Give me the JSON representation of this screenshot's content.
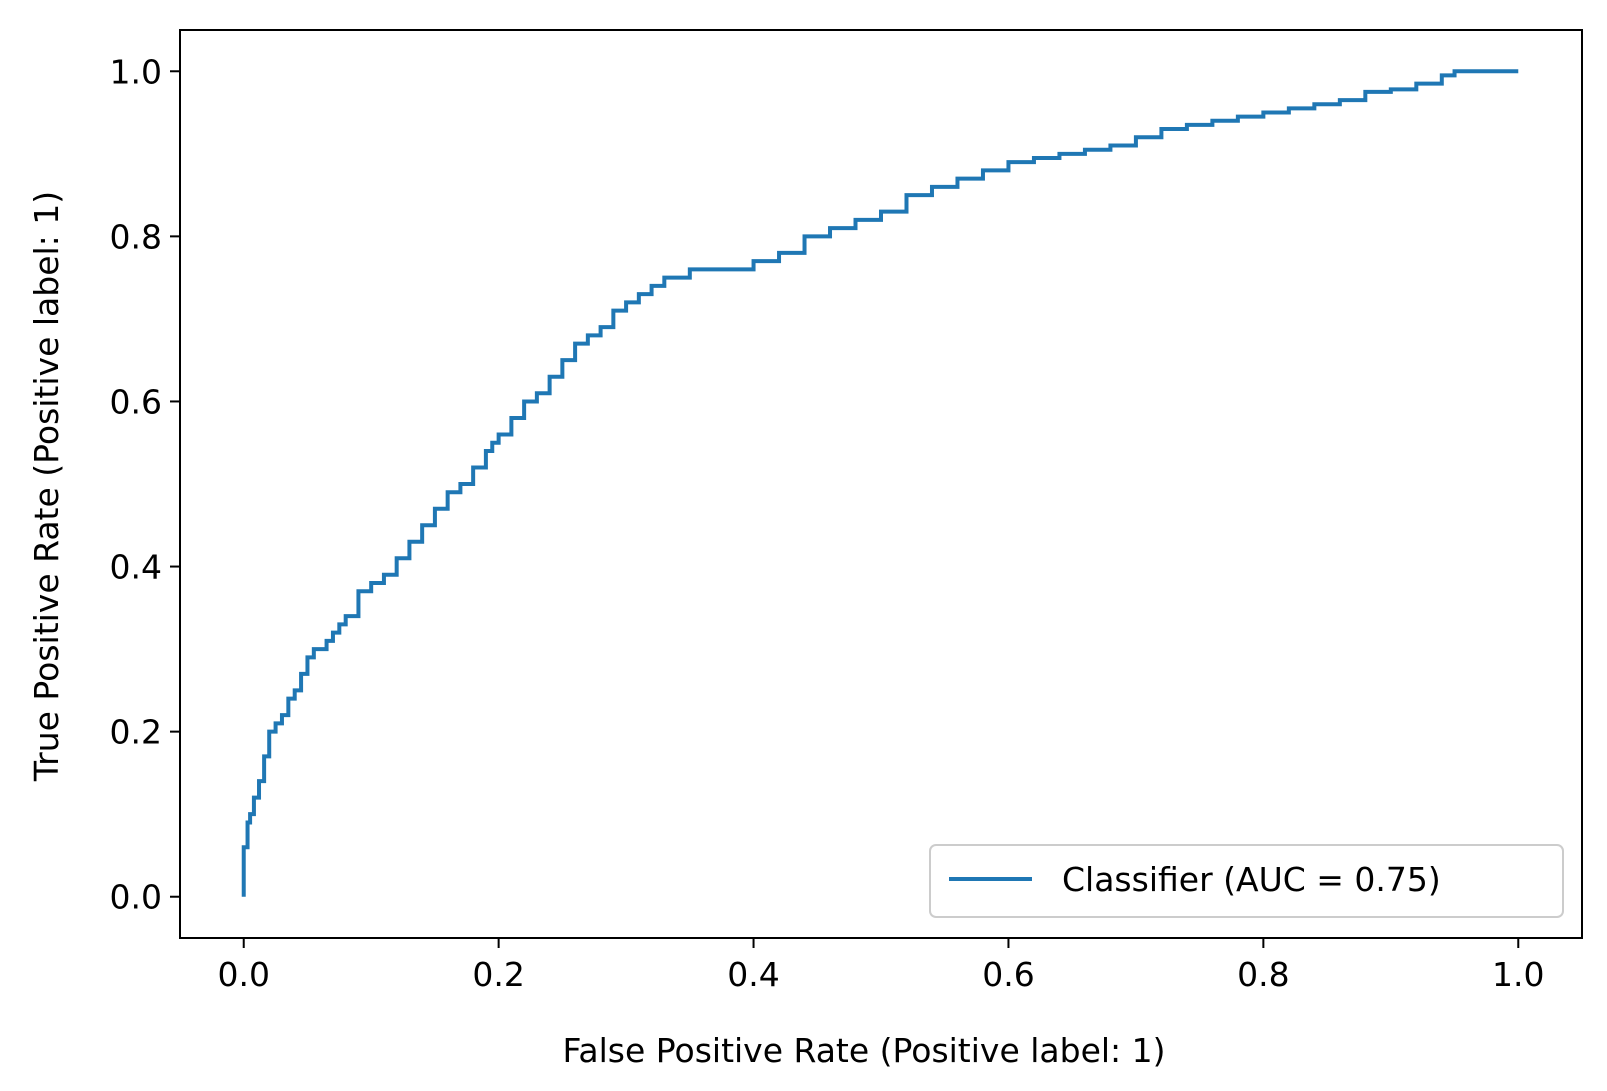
{
  "chart_data": {
    "type": "line",
    "xlabel": "False Positive Rate (Positive label: 1)",
    "ylabel": "True Positive Rate (Positive label: 1)",
    "xlim": [
      -0.05,
      1.05
    ],
    "ylim": [
      -0.05,
      1.05
    ],
    "xticks": [
      "0.0",
      "0.2",
      "0.4",
      "0.6",
      "0.8",
      "1.0"
    ],
    "yticks": [
      "0.0",
      "0.2",
      "0.4",
      "0.6",
      "0.8",
      "1.0"
    ],
    "grid": false,
    "legend_position": "lower-right",
    "series": [
      {
        "name": "Classifier (AUC = 0.75)",
        "color": "#1f77b4",
        "x": [
          0.0,
          0.0,
          0.003,
          0.003,
          0.005,
          0.008,
          0.012,
          0.016,
          0.02,
          0.025,
          0.03,
          0.035,
          0.04,
          0.045,
          0.05,
          0.055,
          0.06,
          0.065,
          0.07,
          0.075,
          0.08,
          0.09,
          0.1,
          0.105,
          0.11,
          0.12,
          0.13,
          0.14,
          0.15,
          0.16,
          0.17,
          0.18,
          0.19,
          0.195,
          0.2,
          0.21,
          0.22,
          0.23,
          0.24,
          0.25,
          0.26,
          0.27,
          0.28,
          0.29,
          0.3,
          0.31,
          0.32,
          0.33,
          0.34,
          0.35,
          0.36,
          0.38,
          0.4,
          0.42,
          0.44,
          0.46,
          0.48,
          0.5,
          0.52,
          0.54,
          0.56,
          0.58,
          0.6,
          0.62,
          0.64,
          0.66,
          0.68,
          0.7,
          0.72,
          0.74,
          0.76,
          0.78,
          0.8,
          0.82,
          0.84,
          0.86,
          0.88,
          0.9,
          0.92,
          0.94,
          0.95,
          0.96,
          1.0
        ],
        "y": [
          0.0,
          0.03,
          0.06,
          0.08,
          0.09,
          0.1,
          0.12,
          0.14,
          0.17,
          0.2,
          0.21,
          0.22,
          0.24,
          0.25,
          0.27,
          0.29,
          0.3,
          0.3,
          0.31,
          0.32,
          0.33,
          0.34,
          0.37,
          0.38,
          0.38,
          0.39,
          0.41,
          0.43,
          0.45,
          0.47,
          0.49,
          0.5,
          0.52,
          0.54,
          0.55,
          0.56,
          0.58,
          0.6,
          0.61,
          0.63,
          0.65,
          0.67,
          0.68,
          0.69,
          0.71,
          0.72,
          0.73,
          0.74,
          0.75,
          0.75,
          0.76,
          0.76,
          0.76,
          0.77,
          0.78,
          0.8,
          0.81,
          0.82,
          0.83,
          0.85,
          0.86,
          0.87,
          0.88,
          0.89,
          0.895,
          0.9,
          0.905,
          0.91,
          0.92,
          0.93,
          0.935,
          0.94,
          0.945,
          0.95,
          0.955,
          0.96,
          0.965,
          0.975,
          0.978,
          0.985,
          0.995,
          1.0,
          1.0
        ]
      }
    ]
  }
}
